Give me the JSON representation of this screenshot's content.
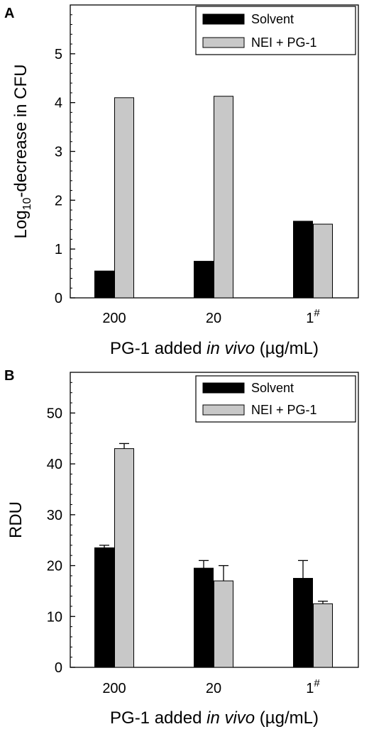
{
  "chart_data": [
    {
      "type": "bar",
      "panel_label": "A",
      "categories": [
        "200",
        "20",
        "1"
      ],
      "category_superscripts": [
        "",
        "",
        "#"
      ],
      "series": [
        {
          "name": "Solvent",
          "values": [
            0.55,
            0.75,
            1.57
          ],
          "errors": [
            0,
            0,
            0
          ],
          "color": "#000000"
        },
        {
          "name": "NEI + PG-1",
          "values": [
            4.1,
            4.13,
            1.51
          ],
          "errors": [
            0,
            0,
            0
          ],
          "color": "#c8c8c8"
        }
      ],
      "ylim": [
        0,
        6
      ],
      "yticks": [
        0,
        1,
        2,
        3,
        4,
        5
      ],
      "minor_tick_step": 0.2,
      "ylabel": {
        "pre": "Log",
        "sub": "10",
        "post": "-decrease in CFU"
      },
      "xlabel": {
        "pre": "PG-1 added ",
        "italic": "in vivo",
        "post": " (µg/mL)"
      },
      "legend_position": "top-right"
    },
    {
      "type": "bar",
      "panel_label": "B",
      "categories": [
        "200",
        "20",
        "1"
      ],
      "category_superscripts": [
        "",
        "",
        "#"
      ],
      "series": [
        {
          "name": "Solvent",
          "values": [
            23.5,
            19.5,
            17.5
          ],
          "errors": [
            0.5,
            1.5,
            3.5
          ],
          "color": "#000000"
        },
        {
          "name": "NEI + PG-1",
          "values": [
            43,
            17,
            12.5
          ],
          "errors": [
            1,
            3,
            0.5
          ],
          "color": "#c8c8c8"
        }
      ],
      "ylim": [
        0,
        58
      ],
      "yticks": [
        0,
        10,
        20,
        30,
        40,
        50
      ],
      "minor_tick_step": 2,
      "ylabel": {
        "pre": "RDU",
        "sub": "",
        "post": ""
      },
      "xlabel": {
        "pre": "PG-1 added ",
        "italic": "in vivo",
        "post": " (µg/mL)"
      },
      "legend_position": "top-right"
    }
  ]
}
